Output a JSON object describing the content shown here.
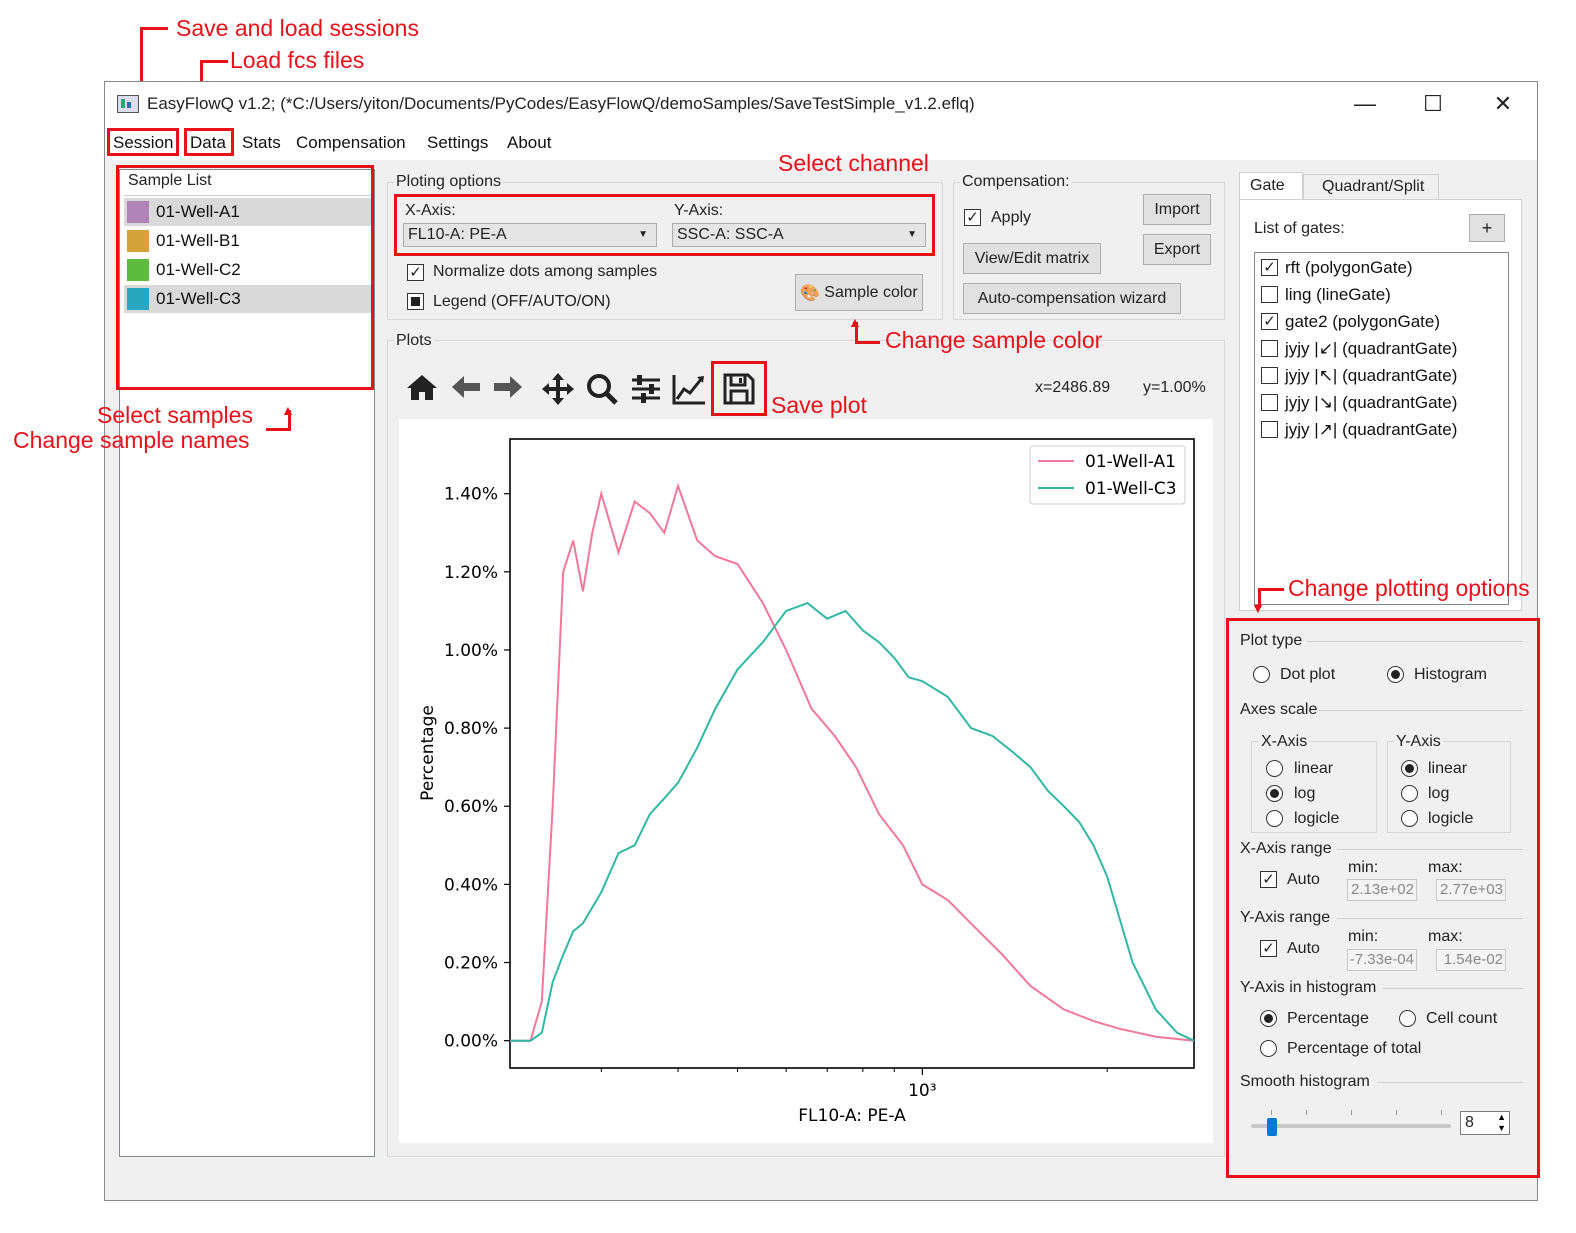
{
  "annotations": {
    "save_load_sessions": "Save and load sessions",
    "load_fcs_files": "Load fcs files",
    "select_channel": "Select channel",
    "change_sample_color": "Change sample color",
    "save_plot": "Save plot",
    "select_samples": "Select samples",
    "change_sample_names": "Change sample names",
    "change_plotting_options": "Change plotting options"
  },
  "window": {
    "title": "EasyFlowQ v1.2; (*C:/Users/yiton/Documents/PyCodes/EasyFlowQ/demoSamples/SaveTestSimple_v1.2.eflq)",
    "minimize": "—",
    "maximize": "☐",
    "close": "✕"
  },
  "menu": [
    "Session",
    "Data",
    "Stats",
    "Compensation",
    "Settings",
    "About"
  ],
  "sample_list": {
    "title": "Sample List",
    "items": [
      {
        "name": "01-Well-A1",
        "color": "#b084b8",
        "selected": true
      },
      {
        "name": "01-Well-B1",
        "color": "#d4a43a",
        "selected": false
      },
      {
        "name": "01-Well-C2",
        "color": "#5cbc3e",
        "selected": false
      },
      {
        "name": "01-Well-C3",
        "color": "#2ba6c0",
        "selected": true
      }
    ]
  },
  "plotting_options": {
    "title": "Ploting options",
    "x_axis_label": "X-Axis:",
    "x_axis_value": "FL10-A: PE-A",
    "y_axis_label": "Y-Axis:",
    "y_axis_value": "SSC-A: SSC-A",
    "normalize_label": "Normalize dots among samples",
    "normalize_checked": true,
    "legend_label": "Legend (OFF/AUTO/ON)",
    "sample_color_button": "Sample color"
  },
  "compensation": {
    "title": "Compensation:",
    "apply_label": "Apply",
    "apply_checked": true,
    "import": "Import",
    "export": "Export",
    "view_edit": "View/Edit matrix",
    "wizard": "Auto-compensation wizard"
  },
  "plots": {
    "title": "Plots",
    "coord_x": "x=2486.89",
    "coord_y": "y=1.00%"
  },
  "gate_panel": {
    "tabs": [
      "Gate",
      "Quadrant/Split"
    ],
    "list_title": "List of gates:",
    "add_button": "+",
    "gates": [
      {
        "label": "rft (polygonGate)",
        "checked": true
      },
      {
        "label": "ling (lineGate)",
        "checked": false
      },
      {
        "label": "gate2 (polygonGate)",
        "checked": true
      },
      {
        "label": "jyjy |↙| (quadrantGate)",
        "checked": false
      },
      {
        "label": "jyjy |↖| (quadrantGate)",
        "checked": false
      },
      {
        "label": "jyjy |↘| (quadrantGate)",
        "checked": false
      },
      {
        "label": "jyjy |↗| (quadrantGate)",
        "checked": false
      }
    ]
  },
  "plot_settings": {
    "plot_type_title": "Plot type",
    "dot_plot": "Dot plot",
    "histogram": "Histogram",
    "plot_type_selected": "Histogram",
    "axes_scale_title": "Axes scale",
    "x_axis_title": "X-Axis",
    "y_axis_title": "Y-Axis",
    "scale_options": [
      "linear",
      "log",
      "logicle"
    ],
    "x_scale_selected": "log",
    "y_scale_selected": "linear",
    "x_range_title": "X-Axis range",
    "x_auto_label": "Auto",
    "x_min_label": "min:",
    "x_max_label": "max:",
    "x_min_value": "2.13e+02",
    "x_max_value": "2.77e+03",
    "y_range_title": "Y-Axis range",
    "y_auto_label": "Auto",
    "y_min_label": "min:",
    "y_max_label": "max:",
    "y_min_value": "-7.33e-04",
    "y_max_value": "1.54e-02",
    "y_hist_title": "Y-Axis in histogram",
    "percentage": "Percentage",
    "cell_count": "Cell count",
    "percentage_total": "Percentage of total",
    "y_hist_selected": "Percentage",
    "smooth_title": "Smooth histogram",
    "smooth_value": "8"
  },
  "chart_data": {
    "type": "line",
    "xlabel": "FL10-A: PE-A",
    "ylabel": "Percentage",
    "x_scale": "log",
    "xlim": [
      213,
      2770
    ],
    "ylim": [
      -0.07,
      1.54
    ],
    "x_tick_label": "10³",
    "y_ticks": [
      0.0,
      0.2,
      0.4,
      0.6,
      0.8,
      1.0,
      1.2,
      1.4
    ],
    "y_tick_labels": [
      "0.00%",
      "0.20%",
      "0.40%",
      "0.60%",
      "0.80%",
      "1.00%",
      "1.20%",
      "1.40%"
    ],
    "legend_position": "top-right",
    "series": [
      {
        "name": "01-Well-A1",
        "color": "#f0789a",
        "x": [
          213,
          230,
          240,
          250,
          260,
          270,
          280,
          290,
          300,
          320,
          340,
          360,
          380,
          400,
          430,
          460,
          500,
          550,
          600,
          660,
          720,
          780,
          850,
          930,
          1000,
          1100,
          1200,
          1350,
          1500,
          1700,
          1900,
          2100,
          2400,
          2770
        ],
        "y": [
          0.0,
          0.0,
          0.1,
          0.6,
          1.2,
          1.28,
          1.15,
          1.3,
          1.4,
          1.25,
          1.38,
          1.35,
          1.3,
          1.42,
          1.28,
          1.24,
          1.22,
          1.12,
          1.0,
          0.85,
          0.78,
          0.7,
          0.58,
          0.5,
          0.4,
          0.36,
          0.3,
          0.22,
          0.14,
          0.08,
          0.05,
          0.03,
          0.01,
          0.0
        ]
      },
      {
        "name": "01-Well-C3",
        "color": "#30b8a4",
        "x": [
          213,
          230,
          240,
          250,
          260,
          270,
          280,
          300,
          320,
          340,
          360,
          380,
          400,
          430,
          460,
          500,
          550,
          600,
          650,
          700,
          750,
          800,
          850,
          900,
          950,
          1000,
          1100,
          1200,
          1300,
          1400,
          1500,
          1600,
          1700,
          1800,
          1900,
          2000,
          2200,
          2400,
          2600,
          2770
        ],
        "y": [
          0.0,
          0.0,
          0.02,
          0.15,
          0.22,
          0.28,
          0.3,
          0.38,
          0.48,
          0.5,
          0.58,
          0.62,
          0.66,
          0.75,
          0.85,
          0.95,
          1.02,
          1.1,
          1.12,
          1.08,
          1.1,
          1.05,
          1.02,
          0.98,
          0.93,
          0.92,
          0.88,
          0.8,
          0.78,
          0.74,
          0.7,
          0.64,
          0.6,
          0.56,
          0.5,
          0.42,
          0.2,
          0.08,
          0.02,
          0.0
        ]
      }
    ]
  }
}
